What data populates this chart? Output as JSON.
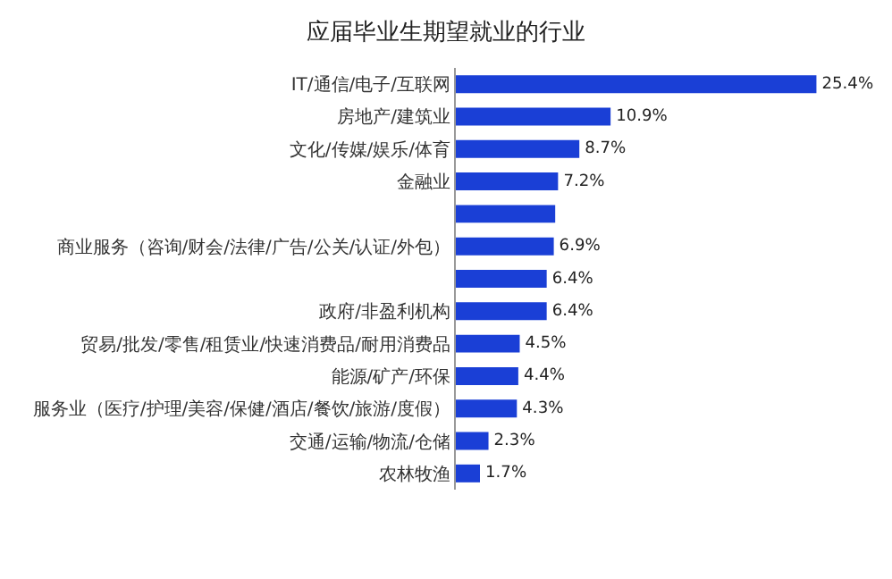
{
  "chart_data": {
    "type": "bar",
    "orientation": "horizontal",
    "title": "应届毕业生期望就业的行业",
    "categories": [
      "IT/通信/电子/互联网",
      "房地产/建筑业",
      "文化/传媒/娱乐/体育",
      "金融业",
      null,
      "商业服务（咨询/财会/法律/广告/公关/认证/外包）",
      null,
      "政府/非盈利机构",
      "贸易/批发/零售/租赁业/快速消费品/耐用消费品",
      "能源/矿产/环保",
      "服务业（医疗/护理/美容/保健/酒店/餐饮/旅游/度假）",
      "交通/运输/物流/仓储",
      "农林牧渔"
    ],
    "values": [
      25.4,
      10.9,
      8.7,
      7.2,
      7.0,
      6.9,
      6.4,
      6.4,
      4.5,
      4.4,
      4.3,
      2.3,
      1.7
    ],
    "value_labels": [
      "25.4%",
      "10.9%",
      "8.7%",
      "7.2%",
      null,
      "6.9%",
      "6.4%",
      "6.4%",
      "4.5%",
      "4.4%",
      "4.3%",
      "2.3%",
      "1.7%"
    ],
    "color": "#1a3fd6",
    "grid": false,
    "legend": false
  }
}
